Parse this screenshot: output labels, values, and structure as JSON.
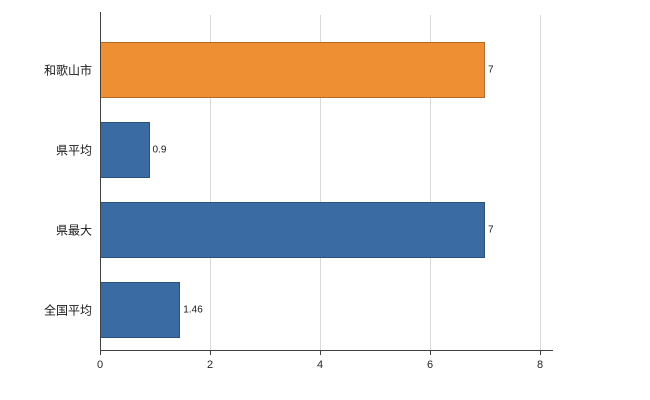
{
  "chart_data": {
    "type": "bar",
    "orientation": "horizontal",
    "title": "",
    "xlabel": "",
    "ylabel": "",
    "categories": [
      "和歌山市",
      "県平均",
      "県最大",
      "全国平均"
    ],
    "values": [
      7,
      0.9,
      7,
      1.46
    ],
    "value_labels": [
      "7",
      "0.9",
      "7",
      "1.46"
    ],
    "bar_colors": [
      "#ee8f33",
      "#3a6ba3",
      "#3a6ba3",
      "#3a6ba3"
    ],
    "xlim": [
      0,
      8
    ],
    "xticks": [
      0,
      2,
      4,
      6,
      8
    ],
    "xtick_labels": [
      "0",
      "2",
      "4",
      "6",
      "8"
    ],
    "grid": true,
    "legend": "none",
    "background_color": "#ffffff",
    "gridline_color": "#d9d9d9",
    "axis_color": "#404040"
  }
}
